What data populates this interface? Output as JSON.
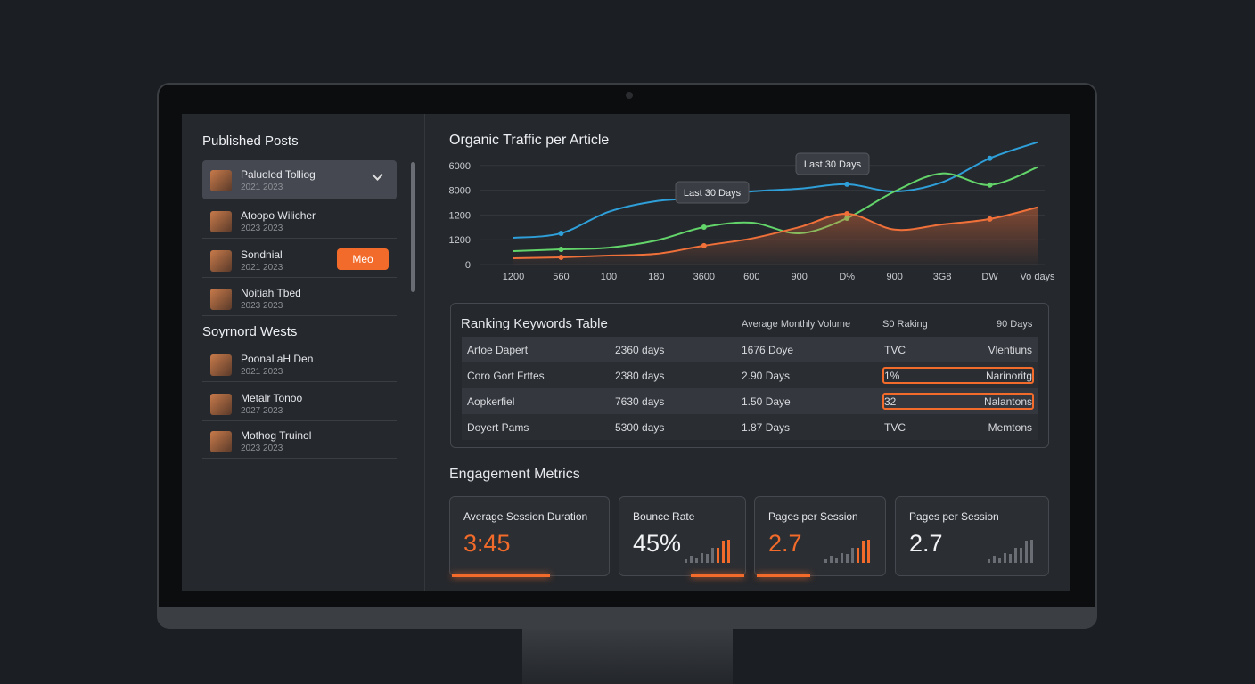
{
  "sidebar": {
    "sections": [
      {
        "title": "Published Posts",
        "items": [
          {
            "title": "Paluoled Tolliog",
            "date": "2021 2023"
          },
          {
            "title": "Atoopo Wilicher",
            "date": "2023 2023"
          },
          {
            "title": "Sondnial",
            "date": "2021 2023",
            "button": "Meo"
          },
          {
            "title": "Noitiah Tbed",
            "date": "2023 2023"
          }
        ]
      },
      {
        "title": "Soyrnord Wests",
        "items": [
          {
            "title": "Poonal aH Den",
            "date": "2021 2023"
          },
          {
            "title": "Metalr Tonoo",
            "date": "2027 2023"
          },
          {
            "title": "Mothog Truinol",
            "date": "2023 2023"
          }
        ]
      }
    ]
  },
  "chart": {
    "type": "line",
    "title": "Organic Traffic per Article",
    "categories": [
      "1200",
      "560",
      "100",
      "180",
      "3600",
      "600",
      "900",
      "D%",
      "900",
      "3G8",
      "DW",
      "Vo days"
    ],
    "ylim": [
      0,
      5
    ],
    "yticks": [
      {
        "value": 0,
        "label": "0"
      },
      {
        "value": 1,
        "label": "1200"
      },
      {
        "value": 2,
        "label": "1200"
      },
      {
        "value": 3,
        "label": "8000"
      },
      {
        "value": 4,
        "label": "6000"
      }
    ],
    "annotations": [
      "Last 30 Days",
      "Last 30 Days"
    ],
    "series": [
      {
        "color": "#2e9fd8",
        "values": [
          1.08,
          1.26,
          2.13,
          2.56,
          2.7,
          2.95,
          3.06,
          3.24,
          2.95,
          3.32,
          4.29,
          4.94
        ]
      },
      {
        "color": "#63d46a",
        "values": [
          0.54,
          0.61,
          0.68,
          0.97,
          1.51,
          1.69,
          1.26,
          1.87,
          2.95,
          3.68,
          3.21,
          3.93
        ]
      },
      {
        "color": "#f0703a",
        "values": [
          0.25,
          0.29,
          0.36,
          0.43,
          0.76,
          1.05,
          1.51,
          2.05,
          1.41,
          1.62,
          1.84,
          2.31
        ]
      }
    ]
  },
  "table": {
    "title": "Ranking Keywords Table",
    "headers": [
      "Average Monthly Volume",
      "S0 Raking",
      "90 Days"
    ],
    "rows": [
      [
        "Artoe Dapert",
        "2360 days",
        "1676 Doye",
        "TVC",
        "Vlentiuns"
      ],
      [
        "Coro Gort Frttes",
        "2380 days",
        "2.90 Days",
        "1%",
        "Narinoritg"
      ],
      [
        "Aopkerfiel",
        "7630 days",
        "1.50 Daye",
        "32",
        "Nalantons"
      ],
      [
        "Doyert Pams",
        "5300 days",
        "1.87 Days",
        "TVC",
        "Memtons"
      ]
    ]
  },
  "engagement": {
    "title": "Engagement Metrics",
    "cards": [
      {
        "label": "Average Session Duration",
        "value": "3:45"
      },
      {
        "label": "Bounce Rate",
        "value": "45%"
      },
      {
        "label": "Pages per Session",
        "value": "2.7"
      },
      {
        "label": "Pages per Session",
        "value": "2.7"
      }
    ]
  }
}
